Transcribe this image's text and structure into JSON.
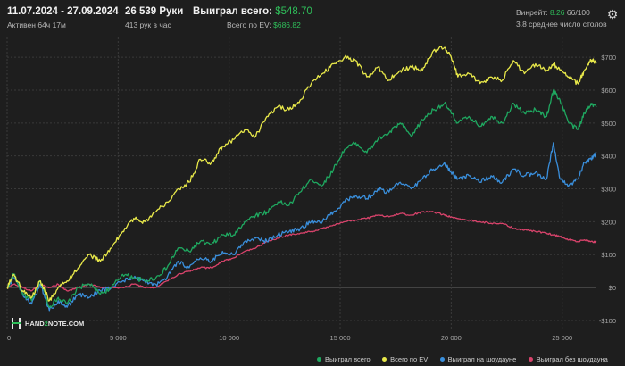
{
  "header": {
    "date_range": "11.07.2024 - 27.09.2024",
    "active_time": "Активен 64ч 17м",
    "hands": "26 539 Руки",
    "hands_per_hour": "413 рук в час",
    "won_total_label": "Выиграл всего:",
    "won_total_value": "$548.70",
    "ev_label": "Всего по EV:",
    "ev_value": "$686.82",
    "winrate_label": "Винрейт:",
    "winrate_value": "8.26",
    "winrate_unit": "66/100",
    "avg_tables": "3.8 среднее число столов"
  },
  "logo": {
    "part1": "HAND",
    "part2": "2",
    "part3": "NOTE.COM"
  },
  "colors": {
    "background": "#1e1e1e",
    "grid": "#3a3a3a",
    "won_total": "#1fa860",
    "ev": "#e8e84a",
    "showdown": "#3a8fdc",
    "non_showdown": "#d8436b",
    "accent_green": "#2fbf5a"
  },
  "chart_data": {
    "type": "line",
    "xlim": [
      0,
      26539
    ],
    "ylim": [
      -130,
      760
    ],
    "x_ticks": [
      0,
      5000,
      10000,
      15000,
      20000,
      25000
    ],
    "x_tick_labels": [
      "0",
      "5 000",
      "10 000",
      "15 000",
      "20 000",
      "25 000"
    ],
    "y_ticks": [
      -100,
      0,
      100,
      200,
      300,
      400,
      500,
      600,
      700
    ],
    "y_tick_labels": [
      "-$100",
      "$0",
      "$100",
      "$200",
      "$300",
      "$400",
      "$500",
      "$600",
      "$700"
    ],
    "grid": true,
    "legend_position": "bottom-right",
    "series": [
      {
        "name": "Выиграл всего",
        "color": "#1fa860",
        "x": [
          0,
          300,
          700,
          1100,
          1500,
          1900,
          2300,
          2700,
          3200,
          3700,
          4200,
          4700,
          5200,
          5700,
          6200,
          6700,
          7200,
          7700,
          8200,
          8700,
          9200,
          9700,
          10200,
          10700,
          11200,
          11700,
          12200,
          12700,
          13200,
          13700,
          14200,
          14700,
          15200,
          15700,
          16200,
          16700,
          17200,
          17700,
          18200,
          18700,
          19200,
          19700,
          20000,
          20300,
          20800,
          21300,
          21800,
          22300,
          22800,
          23300,
          23800,
          24300,
          24600,
          24900,
          25300,
          25700,
          26000,
          26300,
          26539
        ],
        "y": [
          0,
          40,
          -20,
          -40,
          20,
          -60,
          -30,
          -50,
          0,
          10,
          -20,
          0,
          40,
          30,
          20,
          30,
          60,
          120,
          110,
          140,
          130,
          160,
          160,
          200,
          220,
          230,
          260,
          250,
          290,
          330,
          310,
          360,
          420,
          440,
          410,
          450,
          470,
          500,
          460,
          510,
          540,
          560,
          530,
          500,
          520,
          490,
          520,
          500,
          560,
          530,
          540,
          520,
          600,
          570,
          500,
          480,
          530,
          560,
          548.7
        ]
      },
      {
        "name": "Всего по EV",
        "color": "#e8e84a",
        "x": [
          0,
          300,
          700,
          1100,
          1500,
          1900,
          2300,
          2700,
          3200,
          3700,
          4200,
          4700,
          5200,
          5700,
          6200,
          6700,
          7200,
          7700,
          8200,
          8700,
          9200,
          9700,
          10200,
          10700,
          11200,
          11700,
          12200,
          12700,
          13200,
          13700,
          14200,
          14700,
          15200,
          15700,
          16200,
          16700,
          17200,
          17700,
          18200,
          18700,
          19200,
          19700,
          20000,
          20300,
          20800,
          21300,
          21800,
          22300,
          22800,
          23300,
          23800,
          24300,
          24600,
          24900,
          25300,
          25700,
          26000,
          26300,
          26539
        ],
        "y": [
          0,
          40,
          -10,
          -30,
          20,
          -40,
          0,
          20,
          60,
          100,
          80,
          120,
          170,
          210,
          200,
          230,
          260,
          300,
          320,
          390,
          380,
          430,
          450,
          480,
          460,
          520,
          550,
          540,
          570,
          620,
          650,
          680,
          700,
          690,
          640,
          670,
          630,
          660,
          670,
          660,
          720,
          730,
          700,
          640,
          650,
          620,
          640,
          630,
          690,
          650,
          680,
          660,
          680,
          660,
          640,
          620,
          660,
          690,
          686.82
        ]
      },
      {
        "name": "Выиграл на шоудауне",
        "color": "#3a8fdc",
        "x": [
          0,
          300,
          700,
          1100,
          1500,
          1900,
          2300,
          2700,
          3200,
          3700,
          4200,
          4700,
          5200,
          5700,
          6200,
          6700,
          7200,
          7700,
          8200,
          8700,
          9200,
          9700,
          10200,
          10700,
          11200,
          11700,
          12200,
          12700,
          13200,
          13700,
          14200,
          14700,
          15200,
          15700,
          16200,
          16700,
          17200,
          17700,
          18200,
          18700,
          19200,
          19700,
          20000,
          20300,
          20800,
          21300,
          21800,
          22300,
          22800,
          23300,
          23800,
          24300,
          24600,
          24900,
          25300,
          25700,
          26000,
          26300,
          26539
        ],
        "y": [
          0,
          30,
          -20,
          -50,
          10,
          -70,
          -40,
          -60,
          -20,
          -30,
          -10,
          0,
          20,
          30,
          20,
          10,
          30,
          80,
          60,
          90,
          80,
          110,
          100,
          140,
          150,
          140,
          160,
          170,
          180,
          200,
          200,
          230,
          260,
          280,
          270,
          300,
          290,
          320,
          300,
          330,
          360,
          380,
          350,
          330,
          340,
          320,
          340,
          320,
          360,
          340,
          350,
          330,
          440,
          330,
          310,
          330,
          380,
          390,
          410
        ]
      },
      {
        "name": "Выиграл без шоудауна",
        "color": "#d8436b",
        "x": [
          0,
          300,
          700,
          1100,
          1500,
          1900,
          2300,
          2700,
          3200,
          3700,
          4200,
          4700,
          5200,
          5700,
          6200,
          6700,
          7200,
          7700,
          8200,
          8700,
          9200,
          9700,
          10200,
          10700,
          11200,
          11700,
          12200,
          12700,
          13200,
          13700,
          14200,
          14700,
          15200,
          15700,
          16200,
          16700,
          17200,
          17700,
          18200,
          18700,
          19200,
          19700,
          20000,
          20300,
          20800,
          21300,
          21800,
          22300,
          22800,
          23300,
          23800,
          24300,
          24600,
          24900,
          25300,
          25700,
          26000,
          26300,
          26539
        ],
        "y": [
          0,
          10,
          0,
          -10,
          10,
          0,
          10,
          -10,
          0,
          10,
          0,
          0,
          0,
          10,
          0,
          0,
          20,
          40,
          50,
          60,
          60,
          80,
          90,
          110,
          120,
          140,
          150,
          160,
          165,
          170,
          180,
          190,
          200,
          205,
          210,
          220,
          215,
          225,
          220,
          230,
          230,
          220,
          215,
          210,
          205,
          200,
          195,
          195,
          180,
          175,
          170,
          165,
          160,
          155,
          145,
          140,
          145,
          140,
          138
        ]
      }
    ]
  }
}
